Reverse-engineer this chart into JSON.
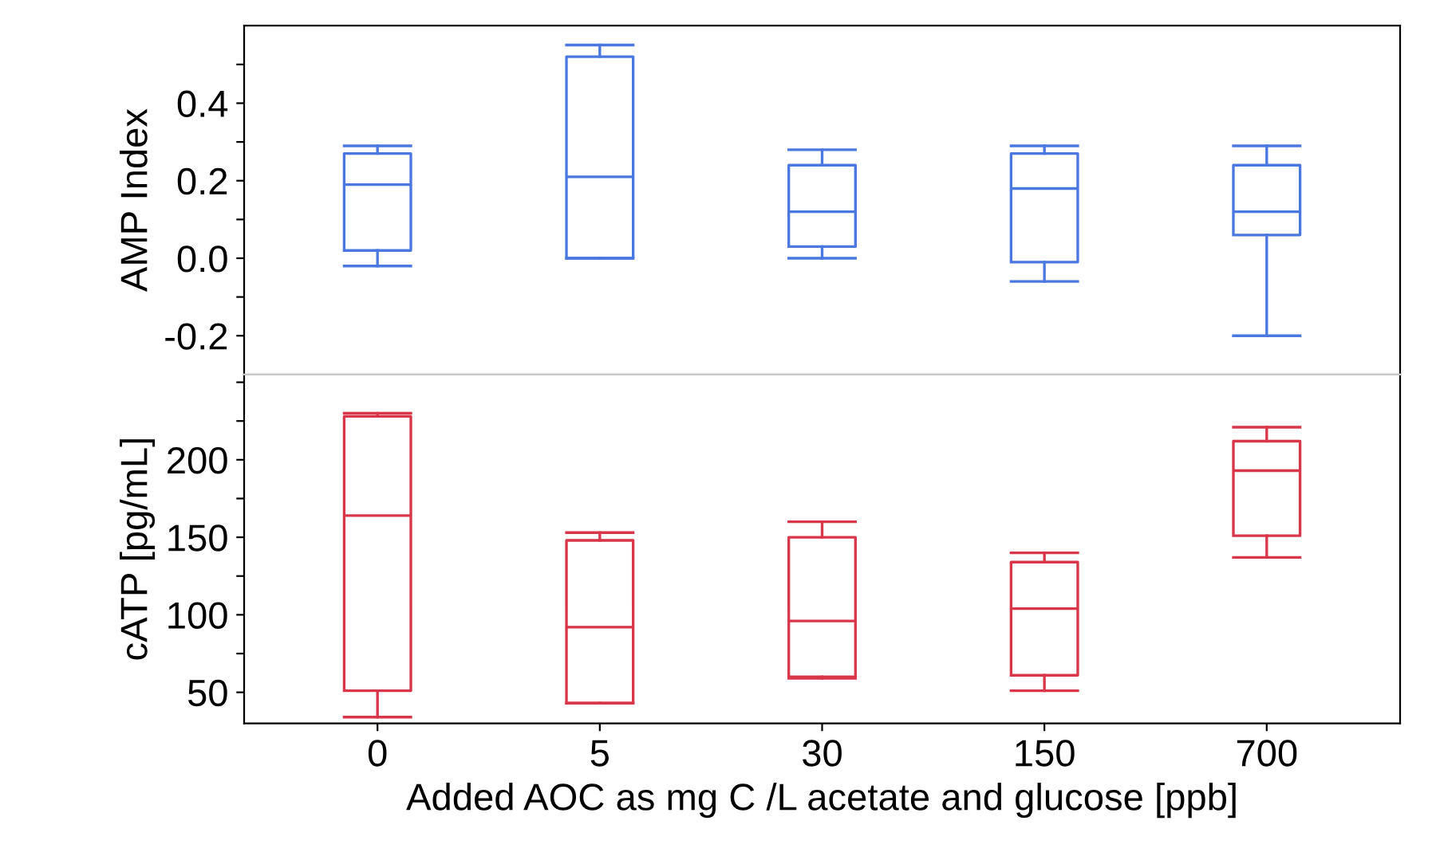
{
  "chart_data": [
    {
      "type": "box",
      "ylabel": "AMP Index",
      "categories": [
        "0",
        "5",
        "30",
        "150",
        "700"
      ],
      "ylim": [
        -0.3,
        0.6
      ],
      "yticks": [
        -0.2,
        {
          "value": -0.1,
          "label": null
        },
        {
          "value": 0,
          "label": "0.0"
        },
        {
          "value": 0.1,
          "label": null
        },
        0.2,
        {
          "value": 0.3,
          "label": null
        },
        0.4,
        {
          "value": 0.5,
          "label": null
        }
      ],
      "tick_labels": "y",
      "grid": false,
      "color": "#4a78e0",
      "boxes": [
        {
          "low": -0.02,
          "q1": 0.02,
          "median": 0.19,
          "q3": 0.27,
          "high": 0.29
        },
        {
          "low": 0.0,
          "q1": 0.0,
          "median": 0.21,
          "q3": 0.52,
          "high": 0.55
        },
        {
          "low": 0.0,
          "q1": 0.03,
          "median": 0.12,
          "q3": 0.24,
          "high": 0.28
        },
        {
          "low": -0.06,
          "q1": -0.01,
          "median": 0.18,
          "q3": 0.27,
          "high": 0.29
        },
        {
          "low": -0.2,
          "q1": 0.06,
          "median": 0.12,
          "q3": 0.24,
          "high": 0.29
        }
      ]
    },
    {
      "type": "box",
      "ylabel": "cATP [pg/mL]",
      "xlabel": "Added AOC as mg C /L acetate and glucose [ppb]",
      "categories": [
        "0",
        "5",
        "30",
        "150",
        "700"
      ],
      "ylim": [
        30,
        255
      ],
      "yticks": [
        50,
        {
          "value": 75,
          "label": null
        },
        100,
        {
          "value": 125,
          "label": null
        },
        150,
        {
          "value": 175,
          "label": null
        },
        200,
        {
          "value": 225,
          "label": null
        },
        {
          "value": 250,
          "label": null
        }
      ],
      "grid": false,
      "color": "#d9364a",
      "boxes": [
        {
          "low": 34,
          "q1": 51,
          "median": 164,
          "q3": 228,
          "high": 230
        },
        {
          "low": 43,
          "q1": 43,
          "median": 92,
          "q3": 148,
          "high": 153
        },
        {
          "low": 59,
          "q1": 60,
          "median": 96,
          "q3": 150,
          "high": 160
        },
        {
          "low": 51,
          "q1": 61,
          "median": 104,
          "q3": 134,
          "high": 140
        },
        {
          "low": 137,
          "q1": 151,
          "median": 193,
          "q3": 212,
          "high": 221
        }
      ]
    }
  ]
}
